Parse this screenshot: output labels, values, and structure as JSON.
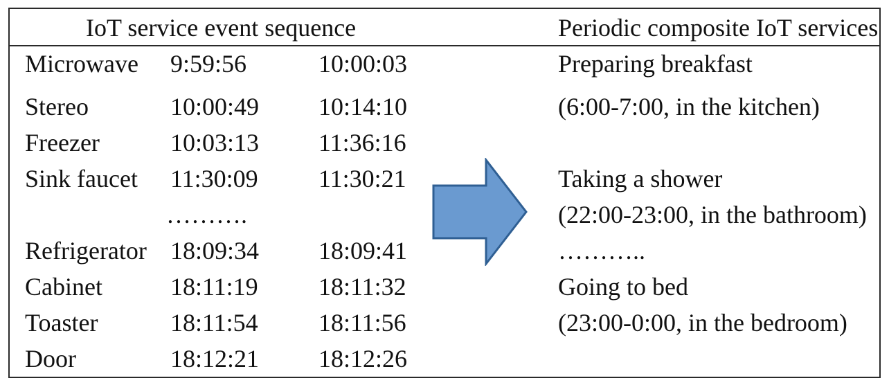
{
  "header": {
    "left": "IoT service event sequence",
    "right": "Periodic composite IoT services"
  },
  "events": [
    {
      "device": "Microwave",
      "start": "9:59:56",
      "end": "10:00:03"
    },
    {
      "device": "Stereo",
      "start": "10:00:49",
      "end": "10:14:10"
    },
    {
      "device": "Freezer",
      "start": "10:03:13",
      "end": "11:36:16"
    },
    {
      "device": "Sink faucet",
      "start": "11:30:09",
      "end": "11:30:21"
    },
    {
      "device": "Refrigerator",
      "start": "18:09:34",
      "end": "18:09:41"
    },
    {
      "device": "Cabinet",
      "start": "18:11:19",
      "end": "18:11:32"
    },
    {
      "device": "Toaster",
      "start": "18:11:54",
      "end": "18:11:56"
    },
    {
      "device": "Door",
      "start": "18:12:21",
      "end": "18:12:26"
    }
  ],
  "events_ellipsis": "……….",
  "services": [
    {
      "name": "Preparing breakfast",
      "detail": "(6:00-7:00, in the kitchen)"
    },
    {
      "name": "Taking a shower",
      "detail": "(22:00-23:00, in the bathroom)"
    },
    {
      "name": "Going to bed",
      "detail": "(23:00-0:00, in the bedroom)"
    }
  ],
  "services_ellipsis": "………..",
  "colors": {
    "arrow_fill": "#6a9ad0",
    "arrow_stroke": "#2f5f93",
    "border": "#2a2a2a"
  },
  "icons": {
    "arrow": "right-arrow-icon"
  }
}
